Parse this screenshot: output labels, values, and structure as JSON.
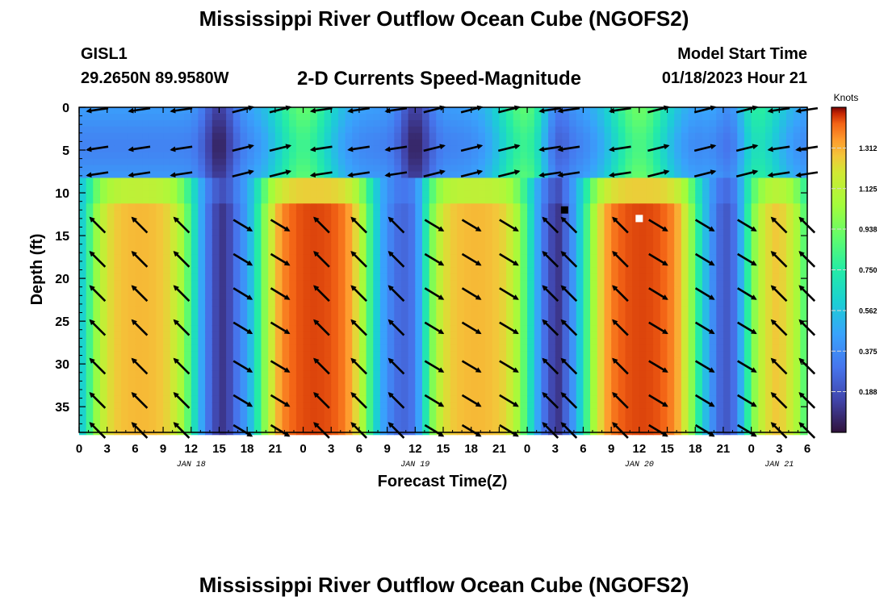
{
  "page": {
    "title": "Mississippi River Outflow Ocean Cube (NGOFS2)",
    "footer_title": "Mississippi River Outflow Ocean Cube (NGOFS2)"
  },
  "header": {
    "station": "GISL1",
    "coords": "29.2650N  89.9580W",
    "subtitle": "2-D Currents Speed-Magnitude",
    "model_label": "Model Start Time",
    "model_time": "01/18/2023 Hour 21"
  },
  "chart_data": {
    "type": "heatmap",
    "title": "2-D Currents Speed-Magnitude",
    "xlabel": "Forecast Time(Z)",
    "ylabel": "Depth (ft)",
    "x_unit": "hours since model start (01/18/2023 00Z)",
    "xlim": [
      0,
      78
    ],
    "ylim": [
      0,
      38
    ],
    "y_inverted": true,
    "x_ticks": [
      0,
      3,
      6,
      9,
      12,
      15,
      18,
      21,
      24,
      27,
      30,
      33,
      36,
      39,
      42,
      45,
      48,
      51,
      54,
      57,
      60,
      63,
      66,
      69,
      72,
      75,
      78
    ],
    "x_tick_labels": [
      "0",
      "3",
      "6",
      "9",
      "12",
      "15",
      "18",
      "21",
      "0",
      "3",
      "6",
      "9",
      "12",
      "15",
      "18",
      "21",
      "0",
      "3",
      "6",
      "9",
      "12",
      "15",
      "18",
      "21",
      "0",
      "3",
      "6"
    ],
    "y_ticks": [
      0,
      5,
      10,
      15,
      20,
      25,
      30,
      35
    ],
    "y_tick_labels": [
      "0",
      "5",
      "10",
      "15",
      "20",
      "25",
      "30",
      "35"
    ],
    "date_labels": [
      {
        "text": "JAN 18",
        "x": 12
      },
      {
        "text": "JAN 19",
        "x": 36
      },
      {
        "text": "JAN 20",
        "x": 60
      },
      {
        "text": "JAN 21",
        "x": 75
      }
    ],
    "colorbar": {
      "title": "Knots",
      "min": 0.0,
      "max": 1.5,
      "ticks": [
        0.188,
        0.375,
        0.562,
        0.75,
        0.938,
        1.125,
        1.312
      ],
      "tick_labels": [
        "0.188",
        "0.375",
        "0.562",
        "0.750",
        "0.938",
        "1.125",
        "1.312"
      ]
    },
    "surface_peaks": [
      {
        "t": 24,
        "speed": 0.85
      },
      {
        "t": 48,
        "speed": 0.85
      },
      {
        "t": 60,
        "speed": 0.9
      },
      {
        "t": 72,
        "speed": 0.7
      }
    ],
    "deep_blocks": [
      {
        "t_start": 1,
        "t_end": 12,
        "peak_speed": 1.3
      },
      {
        "t_start": 19.5,
        "t_end": 31,
        "peak_speed": 1.45
      },
      {
        "t_start": 37,
        "t_end": 48,
        "peak_speed": 1.3
      },
      {
        "t_start": 54.5,
        "t_end": 66,
        "peak_speed": 1.45
      },
      {
        "t_start": 71.5,
        "t_end": 78,
        "peak_speed": 1.3
      }
    ],
    "slack_times": [
      15,
      36,
      51,
      70
    ],
    "vectors": {
      "times": [
        2,
        6.5,
        11,
        17.5,
        21.5,
        26,
        30,
        34,
        38,
        42,
        46,
        50.5,
        52.5,
        58,
        62,
        67,
        71.5,
        75,
        78
      ],
      "depths": [
        0,
        4.5,
        7.5,
        13.5,
        17.5,
        21.5,
        25.5,
        30,
        34,
        37.5
      ]
    },
    "markers": [
      {
        "t": 52,
        "depth": 12,
        "color": "#000000"
      },
      {
        "t": 60,
        "depth": 13,
        "color": "#ffffff"
      }
    ]
  }
}
